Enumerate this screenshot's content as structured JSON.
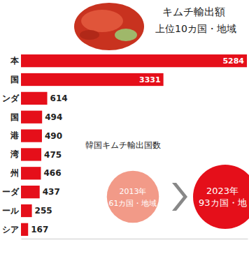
{
  "chart_data": [
    {
      "type": "bar",
      "orientation": "horizontal",
      "title": "キムチ輸出額",
      "subtitle": "上位10カ国・地域",
      "categories": [
        "本",
        "国",
        "ンダ",
        "国",
        "港",
        "湾",
        "州",
        "ーダ",
        "ール",
        "シア"
      ],
      "values": [
        5284,
        3331,
        614,
        494,
        490,
        475,
        466,
        437,
        255,
        167
      ],
      "color": "#e50f1a",
      "xlim": [
        0,
        5300
      ],
      "xticks": [],
      "tick_labels": "y",
      "data_labels": true,
      "grid": false
    },
    {
      "type": "bubble",
      "title": "韓国キムチ輸出国数",
      "categories": [
        "2013年",
        "2023年"
      ],
      "values": [
        61,
        93
      ],
      "value_labels": [
        "61カ国・地域",
        "93カ国・地"
      ],
      "colors": [
        "#f29a88",
        "#e50f1a"
      ],
      "data_labels": true
    }
  ]
}
